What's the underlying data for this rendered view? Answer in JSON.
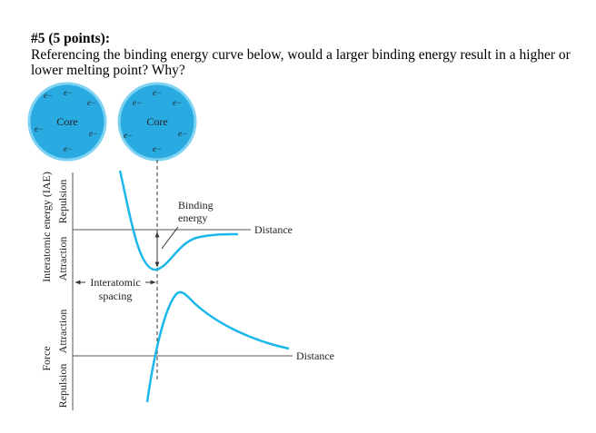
{
  "question": {
    "heading": "#5 (5 points):",
    "text": "Referencing the binding energy curve below, would a larger binding energy result in a higher or lower melting point? Why?"
  },
  "diagram": {
    "atom_core_label": "Core",
    "electron_label": "e−",
    "energy_axis": {
      "title": "Interatomic energy (IAE)",
      "repulsion_label": "Repulsion",
      "attraction_label": "Attraction",
      "distance_label": "Distance"
    },
    "binding_energy_label_line1": "Binding",
    "binding_energy_label_line2": "energy",
    "interatomic_spacing_line1": "Interatomic",
    "interatomic_spacing_line2": "spacing",
    "force_axis": {
      "title": "Force",
      "attraction_label": "Attraction",
      "repulsion_label": "Repulsion",
      "distance_label": "Distance"
    },
    "colors": {
      "atom_fill": "#29abe2",
      "curve": "#1ab7ea",
      "axis": "#555555"
    }
  }
}
